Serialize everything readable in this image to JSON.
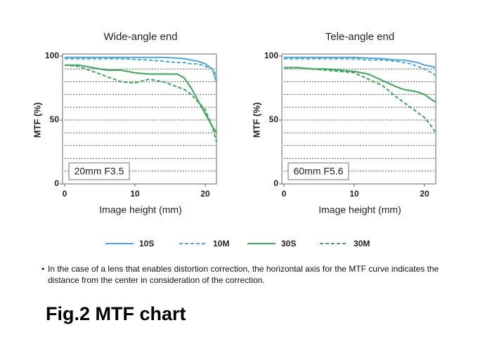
{
  "chart_data": [
    {
      "type": "line",
      "title": "Wide-angle end",
      "xlabel": "Image height (mm)",
      "ylabel": "MTF (%)",
      "annotation": "20mm F3.5",
      "x": [
        0,
        2,
        4,
        6,
        8,
        10,
        12,
        14,
        16,
        17,
        18,
        19,
        20,
        21,
        21.6
      ],
      "series": [
        {
          "name": "10S",
          "color": "#4ba6df",
          "linestyle": "solid",
          "values": [
            99,
            99,
            99,
            99,
            99,
            99,
            99,
            99,
            98.5,
            98,
            97,
            96,
            94,
            90,
            80
          ]
        },
        {
          "name": "10M",
          "color": "#4ba6df",
          "linestyle": "dashed",
          "values": [
            98,
            98,
            98,
            98,
            98,
            97.5,
            97,
            96,
            95,
            95,
            94,
            94,
            92,
            90,
            85
          ]
        },
        {
          "name": "30S",
          "color": "#3aa65a",
          "linestyle": "solid",
          "values": [
            93,
            93,
            91,
            89,
            89,
            87,
            86,
            86,
            86,
            83,
            75,
            65,
            55,
            45,
            40
          ]
        },
        {
          "name": "30M",
          "color": "#3aa65a",
          "linestyle": "dashed",
          "values": [
            93,
            92,
            88,
            84,
            80,
            79,
            82,
            80,
            76,
            74,
            70,
            64,
            58,
            45,
            33
          ]
        }
      ],
      "xlim": [
        0,
        21.6
      ],
      "ylim": [
        0,
        100
      ],
      "xticks": [
        0,
        10,
        20
      ],
      "yticks": [
        0,
        50,
        100
      ],
      "grid_lines": [
        10,
        20,
        30,
        40,
        50,
        60,
        70,
        80,
        90
      ]
    },
    {
      "type": "line",
      "title": "Tele-angle end",
      "xlabel": "Image height (mm)",
      "ylabel": "MTF (%)",
      "annotation": "60mm F5.6",
      "x": [
        0,
        2,
        4,
        6,
        8,
        10,
        12,
        14,
        16,
        17,
        18,
        19,
        20,
        21,
        21.6
      ],
      "series": [
        {
          "color": "#4ba6df",
          "linestyle": "solid",
          "values": [
            99,
            99,
            99,
            99,
            99,
            99,
            98.5,
            98,
            97,
            97,
            96,
            95,
            93,
            92,
            91
          ]
        },
        {
          "color": "#4ba6df",
          "linestyle": "dashed",
          "values": [
            98,
            98,
            98,
            98,
            98,
            98,
            97,
            97,
            96,
            95,
            94,
            92,
            90,
            87,
            85
          ]
        },
        {
          "color": "#3aa65a",
          "linestyle": "solid",
          "values": [
            91,
            91,
            90,
            90,
            89,
            88,
            86,
            81,
            76,
            74,
            73,
            72,
            70,
            66,
            64
          ]
        },
        {
          "color": "#3aa65a",
          "linestyle": "dashed",
          "values": [
            91,
            91,
            90,
            89,
            88,
            87,
            82,
            77,
            68,
            64,
            60,
            56,
            52,
            45,
            40
          ]
        }
      ],
      "xlim": [
        0,
        21.6
      ],
      "ylim": [
        0,
        100
      ],
      "xticks": [
        0,
        10,
        20
      ],
      "yticks": [
        0,
        50,
        100
      ],
      "grid_lines": [
        10,
        20,
        30,
        40,
        50,
        60,
        70,
        80,
        90
      ]
    }
  ],
  "note": "In the case of a lens that enables distortion correction, the horizontal axis for the MTF curve indicates the distance from the center in consideration of the correction.",
  "figure_title": "Fig.2 MTF chart"
}
